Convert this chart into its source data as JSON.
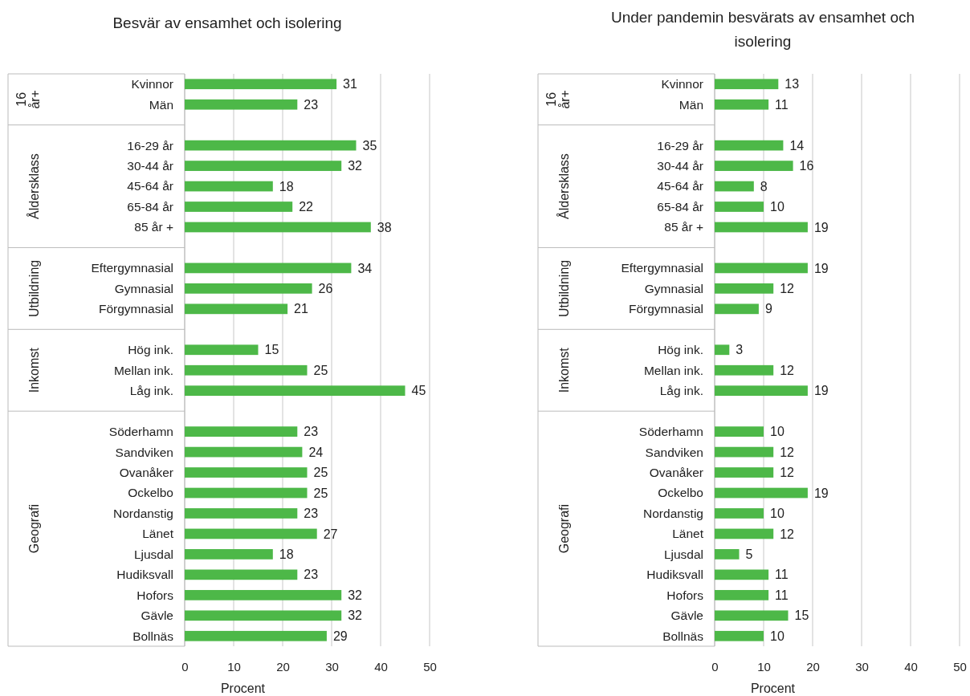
{
  "chart_data": [
    {
      "type": "bar",
      "orientation": "horizontal",
      "title": "Besvär av ensamhet och isolering",
      "xlabel": "Procent",
      "categories": [
        "Kvinnor",
        "Män",
        null,
        "16-29 år",
        "30-44 år",
        "45-64 år",
        "65-84 år",
        "85 år +",
        null,
        "Eftergymnasial",
        "Gymnasial",
        "Förgymnasial",
        null,
        "Hög ink.",
        "Mellan ink.",
        "Låg ink.",
        null,
        "Söderhamn",
        "Sandviken",
        "Ovanåker",
        "Ockelbo",
        "Nordanstig",
        "Länet",
        "Ljusdal",
        "Hudiksvall",
        "Hofors",
        "Gävle",
        "Bollnäs"
      ],
      "values": [
        31,
        23,
        null,
        35,
        32,
        18,
        22,
        38,
        null,
        34,
        26,
        21,
        null,
        15,
        25,
        45,
        null,
        23,
        24,
        25,
        25,
        23,
        27,
        18,
        23,
        32,
        32,
        29
      ],
      "color": "#4db848",
      "xlim": [
        0,
        50
      ],
      "xticks": [
        0,
        10,
        20,
        30,
        40,
        50
      ],
      "grid": "x",
      "data_labels": true,
      "annotations": [
        "16 år+",
        "Åldersklass",
        "Utbildning",
        "Inkomst",
        "Geografi"
      ]
    },
    {
      "type": "bar",
      "orientation": "horizontal",
      "title": "Under pandemin besvärats av ensamhet och isolering",
      "xlabel": "Procent",
      "categories": [
        "Kvinnor",
        "Män",
        null,
        "16-29 år",
        "30-44 år",
        "45-64 år",
        "65-84 år",
        "85 år +",
        null,
        "Eftergymnasial",
        "Gymnasial",
        "Förgymnasial",
        null,
        "Hög ink.",
        "Mellan ink.",
        "Låg ink.",
        null,
        "Söderhamn",
        "Sandviken",
        "Ovanåker",
        "Ockelbo",
        "Nordanstig",
        "Länet",
        "Ljusdal",
        "Hudiksvall",
        "Hofors",
        "Gävle",
        "Bollnäs"
      ],
      "values": [
        13,
        11,
        null,
        14,
        16,
        8,
        10,
        19,
        null,
        19,
        12,
        9,
        null,
        3,
        12,
        19,
        null,
        10,
        12,
        12,
        19,
        10,
        12,
        5,
        11,
        11,
        15,
        10
      ],
      "color": "#4db848",
      "xlim": [
        0,
        50
      ],
      "xticks": [
        0,
        10,
        20,
        30,
        40,
        50
      ],
      "grid": "x",
      "data_labels": true,
      "annotations": [
        "16 år+",
        "Åldersklass",
        "Utbildning",
        "Inkomst",
        "Geografi"
      ]
    }
  ]
}
